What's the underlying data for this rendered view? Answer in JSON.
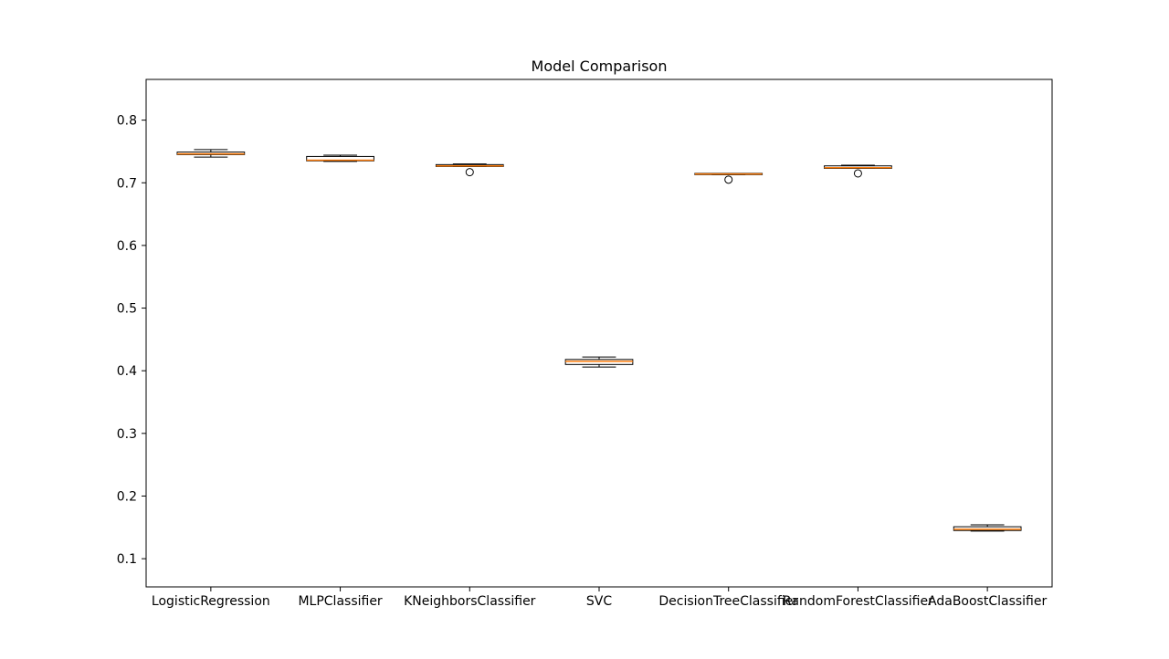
{
  "chart_data": {
    "type": "box",
    "title": "Model Comparison",
    "xlabel": "",
    "ylabel": "",
    "ylim": [
      0.055,
      0.865
    ],
    "yticks": [
      0.1,
      0.2,
      0.3,
      0.4,
      0.5,
      0.6,
      0.7,
      0.8
    ],
    "ytick_labels": [
      "0.1",
      "0.2",
      "0.3",
      "0.4",
      "0.5",
      "0.6",
      "0.7",
      "0.8"
    ],
    "grid": false,
    "colors": {
      "box": "#000000",
      "median": "#ff7f0e",
      "outlier": "#000000"
    },
    "categories": [
      "LogisticRegression",
      "MLPClassifier",
      "KNeighborsClassifier",
      "SVC",
      "DecisionTreeClassifier",
      "RandomForestClassifier",
      "AdaBoostClassifier"
    ],
    "boxes": [
      {
        "whislo": 0.741,
        "q1": 0.745,
        "med": 0.746,
        "q3": 0.749,
        "whishi": 0.753,
        "fliers": []
      },
      {
        "whislo": 0.734,
        "q1": 0.735,
        "med": 0.736,
        "q3": 0.742,
        "whishi": 0.744,
        "fliers": []
      },
      {
        "whislo": 0.726,
        "q1": 0.726,
        "med": 0.727,
        "q3": 0.729,
        "whishi": 0.73,
        "fliers": [
          0.717
        ]
      },
      {
        "whislo": 0.406,
        "q1": 0.41,
        "med": 0.415,
        "q3": 0.418,
        "whishi": 0.422,
        "fliers": []
      },
      {
        "whislo": 0.713,
        "q1": 0.713,
        "med": 0.714,
        "q3": 0.715,
        "whishi": 0.715,
        "fliers": [
          0.705
        ]
      },
      {
        "whislo": 0.723,
        "q1": 0.723,
        "med": 0.724,
        "q3": 0.727,
        "whishi": 0.728,
        "fliers": [
          0.715
        ]
      },
      {
        "whislo": 0.144,
        "q1": 0.145,
        "med": 0.147,
        "q3": 0.151,
        "whishi": 0.154,
        "fliers": []
      }
    ]
  }
}
